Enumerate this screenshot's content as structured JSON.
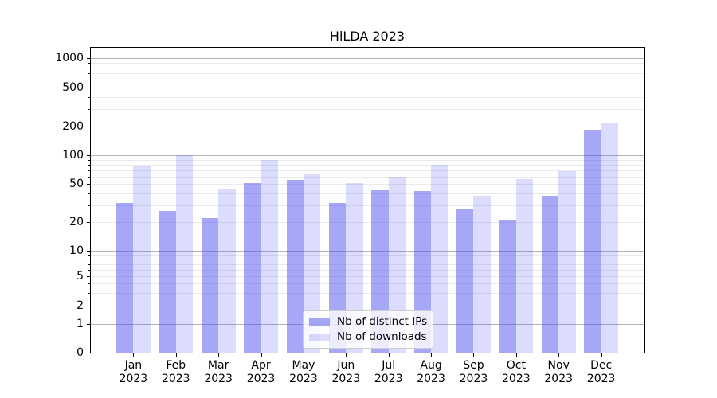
{
  "title": "HiLDA 2023",
  "legend": {
    "items": [
      {
        "label": "Nb of distinct IPs",
        "series": "ips"
      },
      {
        "label": "Nb of downloads",
        "series": "downloads"
      }
    ]
  },
  "colors": {
    "ips": "rgba(80,80,240,0.5)",
    "downloads": "rgba(80,80,240,0.2)",
    "grid_major": "#b2b2b2",
    "grid_minor": "#eaeaea",
    "axis": "#000000",
    "legend_border": "#cccccc",
    "legend_bg": "rgba(255,255,255,0.8)"
  },
  "chart_data": {
    "type": "bar",
    "title": "HiLDA 2023",
    "categories": [
      "Jan\n2023",
      "Feb\n2023",
      "Mar\n2023",
      "Apr\n2023",
      "May\n2023",
      "Jun\n2023",
      "Jul\n2023",
      "Aug\n2023",
      "Sep\n2023",
      "Oct\n2023",
      "Nov\n2023",
      "Dec\n2023"
    ],
    "series": [
      {
        "name": "Nb of distinct IPs",
        "key": "ips",
        "values": [
          32,
          26,
          22,
          51,
          55,
          32,
          43,
          42,
          27,
          21,
          38,
          185
        ]
      },
      {
        "name": "Nb of downloads",
        "key": "downloads",
        "values": [
          78,
          100,
          44,
          90,
          65,
          51,
          60,
          80,
          38,
          57,
          68,
          215
        ]
      }
    ],
    "yscale": "symlog",
    "y_ticks": [
      0,
      1,
      2,
      5,
      10,
      20,
      50,
      100,
      200,
      500,
      1000
    ],
    "y_minor_ticks": [
      2,
      3,
      4,
      5,
      6,
      7,
      8,
      9,
      20,
      30,
      40,
      50,
      60,
      70,
      80,
      90,
      200,
      300,
      400,
      500,
      600,
      700,
      800,
      900
    ],
    "ylim": [
      0,
      1300
    ],
    "xlabel": "",
    "ylabel": "",
    "grid": true,
    "legend_position": "lower center"
  }
}
